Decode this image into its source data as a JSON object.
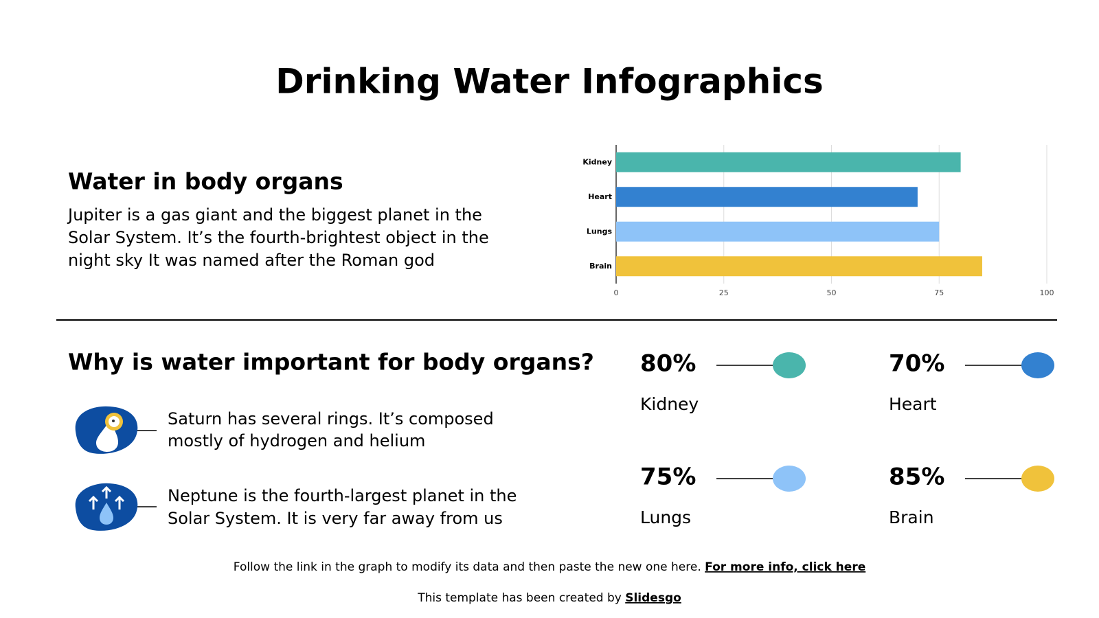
{
  "title": "Drinking Water Infographics",
  "section1": {
    "heading": "Water in body organs",
    "lines": [
      "Jupiter is a gas giant and the biggest planet in the",
      "Solar System. It’s the fourth-brightest object in the",
      "night sky It was named after the Roman god"
    ]
  },
  "chart_data": {
    "type": "bar",
    "orientation": "horizontal",
    "categories": [
      "Kidney",
      "Heart",
      "Lungs",
      "Brain"
    ],
    "values": [
      80,
      70,
      75,
      85
    ],
    "value_labels": [
      "80%",
      "70%",
      "75%",
      "85%"
    ],
    "colors": [
      "#4ab5ac",
      "#3381d0",
      "#8ec3f8",
      "#f0c23b"
    ],
    "xlim": [
      0,
      100
    ],
    "xticks": [
      0,
      25,
      50,
      75,
      100
    ],
    "grid": true
  },
  "section2": {
    "heading": "Why is water important for body organs?",
    "items": [
      {
        "lines": [
          "Saturn has several rings. It’s composed",
          "mostly of hydrogen and helium"
        ]
      },
      {
        "lines": [
          "Neptune is the fourth-largest planet in the",
          "Solar System. It is very far away from us"
        ]
      }
    ]
  },
  "footer": {
    "note": "Follow the link in the graph to modify its data and then paste the new one here.",
    "link": "For more info, click here",
    "credit": "This template has been created by",
    "credit_link": "Slidesgo"
  }
}
